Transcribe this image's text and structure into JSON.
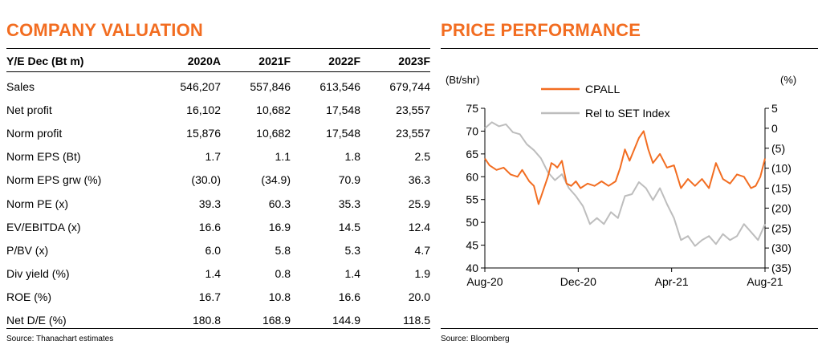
{
  "valuation": {
    "title": "COMPANY VALUATION",
    "columns": [
      "Y/E Dec (Bt m)",
      "2020A",
      "2021F",
      "2022F",
      "2023F"
    ],
    "rows": [
      [
        "Sales",
        "546,207",
        "557,846",
        "613,546",
        "679,744"
      ],
      [
        "Net profit",
        "16,102",
        "10,682",
        "17,548",
        "23,557"
      ],
      [
        "Norm profit",
        "15,876",
        "10,682",
        "17,548",
        "23,557"
      ],
      [
        "Norm EPS (Bt)",
        "1.7",
        "1.1",
        "1.8",
        "2.5"
      ],
      [
        "Norm EPS grw (%)",
        "(30.0)",
        "(34.9)",
        "70.9",
        "36.3"
      ],
      [
        "Norm PE (x)",
        "39.3",
        "60.3",
        "35.3",
        "25.9"
      ],
      [
        "EV/EBITDA (x)",
        "16.6",
        "16.9",
        "14.5",
        "12.4"
      ],
      [
        "P/BV (x)",
        "6.0",
        "5.8",
        "5.3",
        "4.7"
      ],
      [
        "Div yield (%)",
        "1.4",
        "0.8",
        "1.4",
        "1.9"
      ],
      [
        "ROE (%)",
        "16.7",
        "10.8",
        "16.6",
        "20.0"
      ],
      [
        "Net D/E (%)",
        "180.8",
        "168.9",
        "144.9",
        "118.5"
      ]
    ],
    "source": "Source: Thanachart estimates"
  },
  "performance": {
    "title": "PRICE PERFORMANCE",
    "source": "Source: Bloomberg"
  },
  "chart_data": {
    "type": "line",
    "title": "PRICE PERFORMANCE",
    "ylabel_left": "(Bt/shr)",
    "ylabel_right": "(%)",
    "ylim_left": [
      40,
      75
    ],
    "yticks_left": [
      40,
      45,
      50,
      55,
      60,
      65,
      70,
      75
    ],
    "ylim_right": [
      -35,
      5
    ],
    "yticks_right": [
      5,
      0,
      -5,
      -10,
      -15,
      -20,
      -25,
      -30,
      -35
    ],
    "ytick_labels_right": [
      "5",
      "0",
      "(5)",
      "(10)",
      "(15)",
      "(20)",
      "(25)",
      "(30)",
      "(35)"
    ],
    "x_ticks": [
      "Aug-20",
      "Dec-20",
      "Apr-21",
      "Aug-21"
    ],
    "x_tick_index": [
      0,
      4,
      8,
      12
    ],
    "x_range": [
      0,
      12
    ],
    "grid": false,
    "legend_position": "top",
    "series": [
      {
        "name": "CPALL",
        "axis": "left",
        "color": "#f26d21",
        "x": [
          0,
          0.2,
          0.5,
          0.8,
          1.1,
          1.4,
          1.6,
          1.9,
          2.1,
          2.3,
          2.5,
          2.7,
          2.85,
          3.0,
          3.1,
          3.3,
          3.5,
          3.7,
          3.9,
          4.1,
          4.4,
          4.7,
          5.0,
          5.3,
          5.6,
          5.8,
          6.0,
          6.2,
          6.4,
          6.6,
          6.8,
          7.0,
          7.2,
          7.5,
          7.8,
          8.1,
          8.4,
          8.7,
          9.0,
          9.3,
          9.6,
          9.9,
          10.2,
          10.5,
          10.8,
          11.1,
          11.4,
          11.6,
          11.8,
          12.0
        ],
        "values": [
          64.0,
          62.5,
          61.5,
          62.0,
          60.5,
          60.0,
          61.5,
          59.0,
          58.0,
          54.0,
          57.0,
          60.0,
          63.0,
          62.5,
          62.0,
          63.5,
          58.5,
          58.0,
          59.0,
          57.5,
          58.5,
          58.0,
          59.0,
          58.0,
          59.0,
          62.0,
          66.0,
          63.5,
          66.0,
          68.5,
          70.0,
          66.0,
          63.0,
          65.0,
          62.0,
          62.5,
          57.5,
          59.5,
          58.0,
          59.5,
          57.5,
          63.0,
          59.5,
          58.5,
          60.5,
          60.0,
          57.5,
          58.0,
          60.0,
          64.0
        ]
      },
      {
        "name": "Rel to SET Index",
        "axis": "right",
        "color": "#bdbdbd",
        "x": [
          0,
          0.3,
          0.6,
          0.9,
          1.2,
          1.5,
          1.8,
          2.1,
          2.4,
          2.7,
          3.0,
          3.3,
          3.6,
          3.9,
          4.2,
          4.5,
          4.8,
          5.1,
          5.4,
          5.7,
          6.0,
          6.3,
          6.6,
          6.9,
          7.2,
          7.5,
          7.8,
          8.1,
          8.4,
          8.7,
          9.0,
          9.3,
          9.6,
          9.9,
          10.2,
          10.5,
          10.8,
          11.1,
          11.4,
          11.7,
          12.0
        ],
        "values": [
          0,
          1.5,
          0.5,
          1.0,
          -1.0,
          -1.5,
          -4.0,
          -5.5,
          -7.5,
          -11.0,
          -13.0,
          -11.5,
          -15.0,
          -17.0,
          -19.5,
          -24.0,
          -22.5,
          -24.0,
          -21.0,
          -22.5,
          -17.0,
          -16.5,
          -13.5,
          -15.0,
          -18.0,
          -15.0,
          -19.0,
          -22.5,
          -28.0,
          -27.0,
          -29.5,
          -28.0,
          -27.0,
          -29.0,
          -26.5,
          -28.0,
          -27.0,
          -24.0,
          -26.0,
          -28.0,
          -24.0
        ]
      }
    ]
  }
}
